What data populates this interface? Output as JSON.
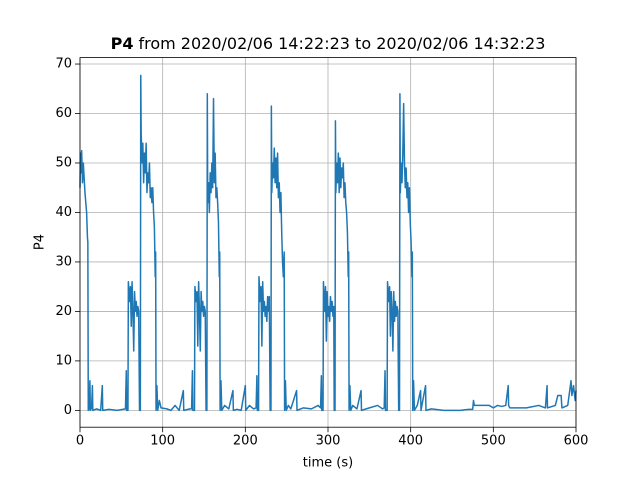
{
  "chart_data": {
    "type": "line",
    "title": {
      "bold": "P4",
      "rest": "from 2020/02/06 14:22:23 to 2020/02/06 14:32:23"
    },
    "xlabel": "time (s)",
    "ylabel": "P4",
    "xlim": [
      0,
      600
    ],
    "xticks": [
      0,
      100,
      200,
      300,
      400,
      500,
      600
    ],
    "ylim": [
      -3.4,
      71.3
    ],
    "yticks": [
      0,
      10,
      20,
      30,
      40,
      50,
      60,
      70
    ],
    "grid": true,
    "series": [
      {
        "color": "#1f77b4",
        "x": [
          0,
          0.5,
          1,
          2,
          3,
          4,
          5,
          6,
          7,
          8,
          9,
          9.5,
          10,
          11,
          12,
          12.5,
          14,
          15,
          15.5,
          20,
          25,
          27,
          27.5,
          35,
          45,
          55,
          56,
          56.5,
          58,
          58.5,
          60,
          61,
          62,
          63,
          64,
          65,
          66,
          67,
          68,
          69,
          70,
          71,
          72,
          73,
          73.5,
          74,
          75,
          76,
          77,
          78,
          79,
          80,
          81,
          82,
          83,
          84,
          85,
          86,
          87,
          88,
          89,
          90,
          91,
          91.5,
          92,
          93,
          94,
          96,
          98,
          105,
          110,
          115,
          120,
          125,
          125.5,
          133,
          135,
          136,
          136.5,
          138.5,
          139,
          140.5,
          141.5,
          142.5,
          143.5,
          144.5,
          145.5,
          146.5,
          147.5,
          148.5,
          149.5,
          150.5,
          151.5,
          152.5,
          153.5,
          154,
          154.5,
          155.5,
          156.5,
          157.5,
          158.5,
          159.5,
          160.5,
          161.5,
          162.5,
          163.5,
          164.5,
          165.5,
          166.5,
          167.5,
          168.5,
          169,
          169.5,
          170.5,
          171.5,
          175,
          180,
          185,
          185.5,
          190,
          195,
          200,
          200.5,
          205,
          210,
          213,
          214,
          214.5,
          216,
          216.5,
          218,
          219,
          220,
          221,
          222,
          223,
          224,
          225,
          226,
          227,
          228,
          229,
          230,
          231,
          231.5,
          232,
          233,
          234,
          235,
          236,
          237,
          238,
          239,
          240,
          241,
          242,
          243,
          244,
          245,
          246,
          247,
          247.5,
          248.5,
          249.5,
          252,
          255,
          262,
          262.5,
          270,
          280,
          288,
          291,
          292,
          292.5,
          294,
          294.5,
          296,
          297,
          298,
          299,
          300,
          301,
          302,
          303,
          304,
          305,
          306,
          307,
          307.5,
          308.5,
          309,
          309.5,
          310.5,
          311.5,
          312.5,
          313.5,
          314.5,
          315.5,
          316.5,
          317.5,
          318.5,
          319.5,
          320.5,
          321.5,
          322.5,
          323.5,
          324.5,
          325,
          325.5,
          326.5,
          327.5,
          330,
          335,
          340,
          340.5,
          350,
          360,
          366,
          368,
          369,
          369.5,
          371.5,
          372,
          373.5,
          374.5,
          375.5,
          376.5,
          377.5,
          378.5,
          379.5,
          380.5,
          381.5,
          382.5,
          383.5,
          384.5,
          385.5,
          386.5,
          387,
          387.5,
          388.5,
          389.5,
          390.5,
          391.5,
          392.5,
          393.5,
          394.5,
          395.5,
          396.5,
          397.5,
          398.5,
          399.5,
          400.5,
          401.5,
          402,
          402.5,
          403.5,
          404.5,
          408,
          412,
          412.5,
          418,
          418.5,
          425,
          440,
          460,
          470,
          475,
          476,
          477,
          485,
          495,
          500,
          505,
          510,
          515,
          518,
          518.5,
          520,
          540,
          555,
          563,
          565,
          565.5,
          575,
          578,
          582,
          583,
          590,
          594,
          595,
          597,
          599,
          600
        ],
        "values": [
          45,
          52,
          48,
          52.5,
          46,
          50,
          47,
          44,
          42,
          40,
          35,
          34,
          0,
          0.3,
          6,
          0,
          0.5,
          5,
          0,
          0.3,
          0,
          5,
          0,
          0.2,
          0,
          0.3,
          8,
          0,
          0,
          26,
          22,
          25,
          17,
          26,
          20,
          12,
          24,
          20,
          22,
          19,
          21,
          20,
          0,
          0,
          67.7,
          56,
          50,
          54,
          46,
          52,
          48,
          54,
          44,
          48,
          46,
          50,
          43,
          45,
          42,
          45,
          40,
          37,
          27,
          32,
          0,
          5,
          0,
          2,
          0.5,
          0.3,
          0,
          1,
          0,
          4,
          0,
          0.3,
          0.3,
          8,
          0,
          0,
          25,
          22,
          24,
          13,
          26,
          20,
          12,
          24,
          20,
          22,
          19,
          21,
          20,
          0,
          0,
          64,
          42,
          46,
          40,
          48,
          44,
          50,
          45,
          63,
          46,
          52,
          43,
          45,
          42,
          38,
          27,
          32,
          0,
          6,
          0,
          1,
          0.3,
          4,
          0,
          0.2,
          0,
          5,
          0,
          1,
          0.3,
          0.5,
          7,
          0,
          0,
          27,
          22,
          25,
          13,
          26,
          20,
          22,
          19,
          21,
          18,
          23,
          20,
          23,
          0,
          0,
          61.5,
          44,
          50,
          47,
          53,
          46,
          51,
          45,
          52,
          43,
          46,
          40,
          44,
          36,
          30,
          27,
          32,
          0,
          6,
          0,
          1,
          0.3,
          4,
          0,
          0.5,
          0.3,
          1,
          0.5,
          7,
          0,
          0,
          26,
          20,
          25,
          14,
          24,
          19,
          21,
          18,
          23,
          20,
          22,
          19,
          21,
          0,
          0,
          58.5,
          44,
          50,
          46,
          52,
          44,
          51,
          45,
          49,
          47,
          50,
          43,
          46,
          42,
          40,
          36,
          27,
          32,
          0,
          5,
          0,
          1,
          0.3,
          4,
          0,
          0.5,
          1,
          0.3,
          0.5,
          8,
          0,
          0,
          26,
          22,
          25,
          15,
          24,
          20,
          12,
          24,
          18,
          22,
          19,
          21,
          20,
          0,
          0,
          64,
          44,
          50,
          46,
          52,
          62,
          50,
          45,
          49,
          43,
          46,
          40,
          45,
          38,
          34,
          27,
          32,
          0,
          6,
          0,
          1,
          4,
          0,
          5,
          0,
          0.3,
          0,
          0,
          0.2,
          0.2,
          2,
          1,
          1,
          1,
          0.5,
          1,
          0.8,
          1,
          5,
          1,
          0.5,
          0.5,
          1,
          0.5,
          5,
          0.5,
          1,
          3,
          3,
          0.5,
          1,
          6,
          3,
          5,
          2,
          4
        ]
      }
    ]
  }
}
